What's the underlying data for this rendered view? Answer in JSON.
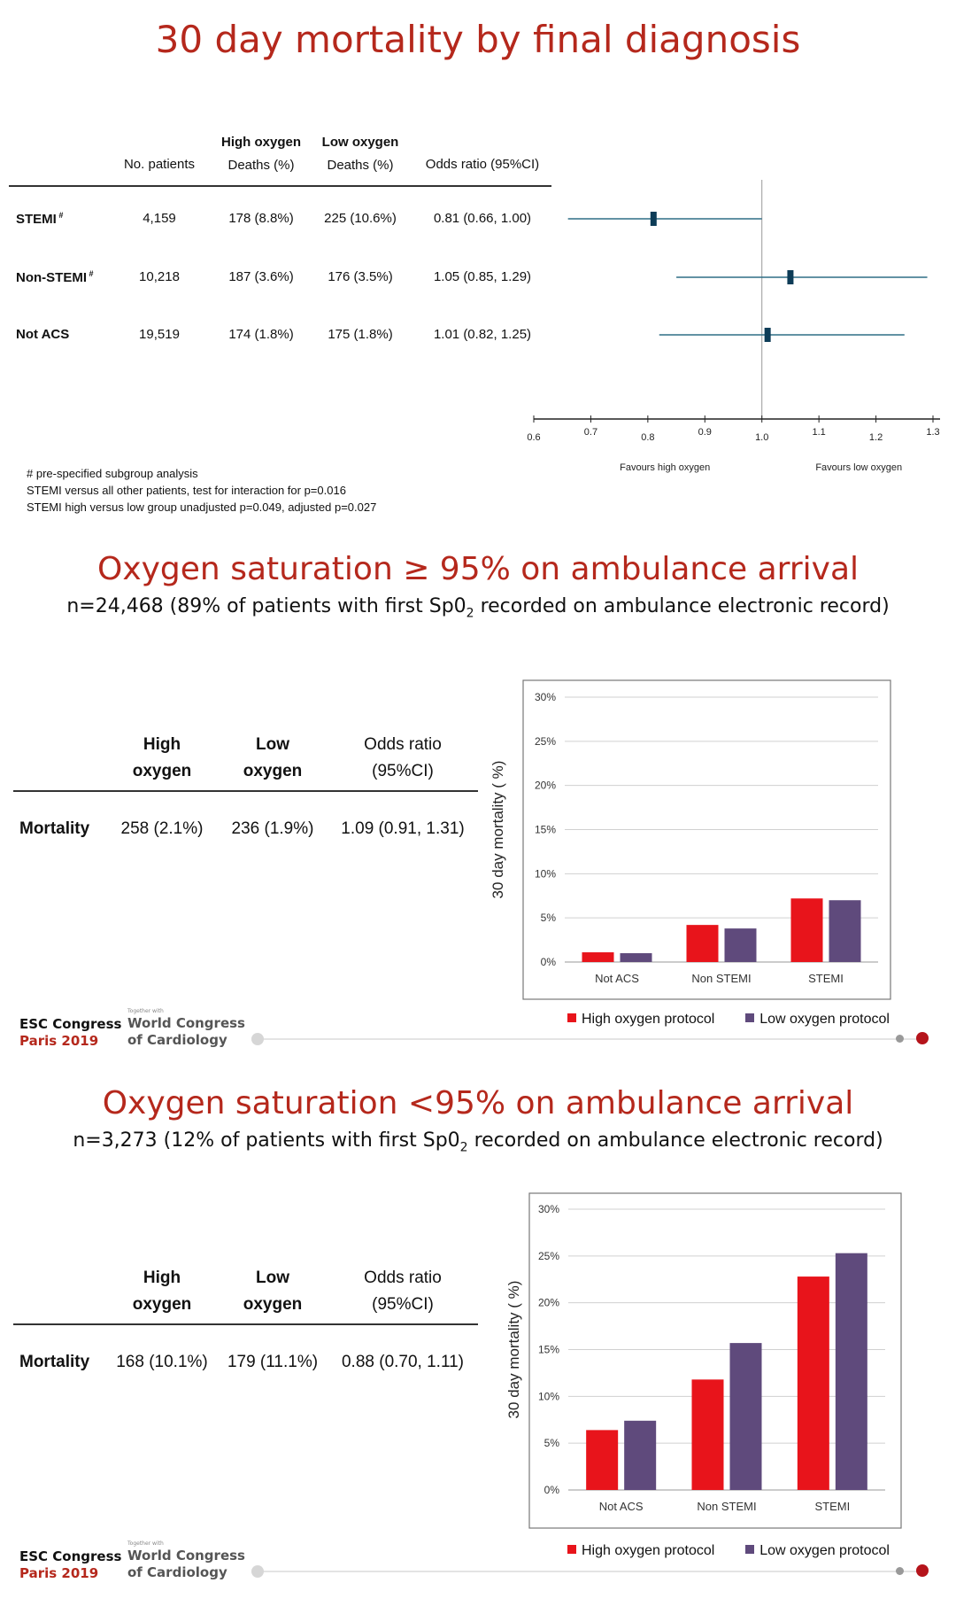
{
  "page_title": "30 day mortality by final diagnosis",
  "forest": {
    "headers": {
      "patients": "No. patients",
      "high_top": "High oxygen",
      "high_bottom": "Deaths (%)",
      "low_top": "Low oxygen",
      "low_bottom": "Deaths (%)",
      "or": "Odds ratio (95%CI)"
    },
    "rows": [
      {
        "name": "STEMI",
        "mark": "#",
        "patients": "4,159",
        "high": "178  (8.8%)",
        "low": "225  (10.6%)",
        "or_text": "0.81 (0.66, 1.00)",
        "or": 0.81,
        "lo": 0.66,
        "hi": 1.0
      },
      {
        "name": "Non-STEMI",
        "mark": "#",
        "patients": "10,218",
        "high": "187 (3.6%)",
        "low": "176  (3.5%)",
        "or_text": "1.05 (0.85, 1.29)",
        "or": 1.05,
        "lo": 0.85,
        "hi": 1.29
      },
      {
        "name": "Not ACS",
        "mark": "",
        "patients": "19,519",
        "high": "174 (1.8%)",
        "low": "175  (1.8%)",
        "or_text": "1.01 (0.82, 1.25)",
        "or": 1.01,
        "lo": 0.82,
        "hi": 1.25
      }
    ],
    "axis_ticks": [
      "0.6",
      "0.7",
      "0.8",
      "0.9",
      "1.0",
      "1.1",
      "1.2",
      "1.3"
    ],
    "favours_high": "Favours high oxygen",
    "favours_low": "Favours low oxygen",
    "notes": [
      "# pre-specified subgroup analysis",
      "STEMI versus all other patients, test for interaction for p=0.016",
      "STEMI  high versus low group unadjusted p=0.049, adjusted p=0.027"
    ]
  },
  "section_a": {
    "title": "Oxygen saturation ≥ 95% on ambulance arrival",
    "subtitle_pre": "n=24,468 (89% of patients with first Sp0",
    "subtitle_sub": "2",
    "subtitle_post": " recorded on ambulance electronic record)",
    "headers": {
      "high_top": "High",
      "high_bottom": "oxygen",
      "low_top": "Low",
      "low_bottom": "oxygen",
      "or_top": "Odds ratio",
      "or_bottom": "(95%CI)"
    },
    "row_label": "Mortality",
    "high": "258 (2.1%)",
    "low": "236 (1.9%)",
    "or": "1.09 (0.91, 1.31)"
  },
  "section_b": {
    "title": "Oxygen saturation <95% on ambulance arrival",
    "subtitle_pre": "n=3,273 (12% of patients with first Sp0",
    "subtitle_sub": "2",
    "subtitle_post": " recorded on ambulance electronic record)",
    "headers": {
      "high_top": "High",
      "high_bottom": "oxygen",
      "low_top": "Low",
      "low_bottom": "oxygen",
      "or_top": "Odds ratio",
      "or_bottom": "(95%CI)"
    },
    "row_label": "Mortality",
    "high": "168  (10.1%)",
    "low": "179 (11.1%)",
    "or": "0.88 (0.70, 1.11)"
  },
  "logo": {
    "esc": "ESC Congress",
    "paris": "Paris 2019",
    "together": "Together with",
    "wc1": "World Congress",
    "wc2": "of Cardiology"
  },
  "colors": {
    "high": "#e8141b",
    "low": "#5f4a7c",
    "title": "#b5281c",
    "forest": "#2f6e86"
  },
  "chart_data": [
    {
      "type": "scatter",
      "x": [
        0.81,
        1.05,
        1.01
      ],
      "xlim": [
        0.6,
        1.3
      ],
      "series": [
        {
          "name": "STEMI",
          "or": 0.81,
          "ci": [
            0.66,
            1.0
          ]
        },
        {
          "name": "Non-STEMI",
          "or": 1.05,
          "ci": [
            0.85,
            1.29
          ]
        },
        {
          "name": "Not ACS",
          "or": 1.01,
          "ci": [
            0.82,
            1.25
          ]
        }
      ],
      "xlabel": "",
      "ylabel": ""
    },
    {
      "type": "bar",
      "categories": [
        "Not ACS",
        "Non STEMI",
        "STEMI"
      ],
      "series": [
        {
          "name": "High oxygen protocol",
          "values": [
            1.1,
            4.2,
            7.2
          ]
        },
        {
          "name": "Low oxygen protocol",
          "values": [
            1.0,
            3.8,
            7.0
          ]
        }
      ],
      "ylabel": "30 day mortality ( %)",
      "ylim": [
        0,
        30
      ],
      "yticks": [
        "0%",
        "5%",
        "10%",
        "15%",
        "20%",
        "25%",
        "30%"
      ],
      "grid": true,
      "legend": "bottom"
    },
    {
      "type": "bar",
      "categories": [
        "Not ACS",
        "Non STEMI",
        "STEMI"
      ],
      "series": [
        {
          "name": "High oxygen protocol",
          "values": [
            6.4,
            11.8,
            22.8
          ]
        },
        {
          "name": "Low oxygen protocol",
          "values": [
            7.4,
            15.7,
            25.3
          ]
        }
      ],
      "ylabel": "30 day mortality ( %)",
      "ylim": [
        0,
        30
      ],
      "yticks": [
        "0%",
        "5%",
        "10%",
        "15%",
        "20%",
        "25%",
        "30%"
      ],
      "grid": true,
      "legend": "bottom"
    }
  ]
}
